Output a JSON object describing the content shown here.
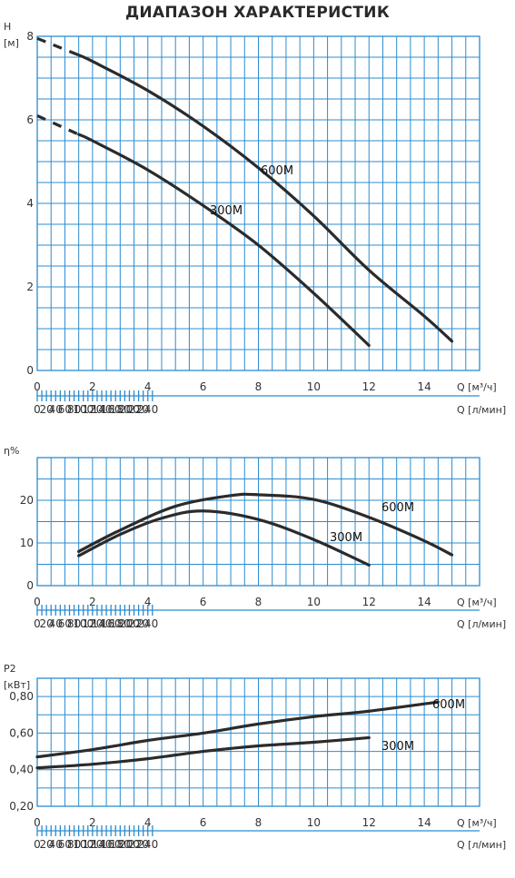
{
  "title": "ДИАПАЗОН ХАРАКТЕРИСТИК",
  "colors": {
    "grid": "#2b8ccf",
    "curve": "#2b2b2b"
  },
  "chart_data": [
    {
      "id": "head",
      "type": "line",
      "ylabel": "H",
      "yunit": "[м]",
      "xlabel": "Q [м³/ч]",
      "x2label": "Q [л/мин]",
      "xlim": [
        0,
        16
      ],
      "ylim": [
        0,
        8
      ],
      "xticks": [
        0,
        2,
        4,
        6,
        8,
        10,
        12,
        14
      ],
      "yticks": [
        0,
        2,
        4,
        6,
        8
      ],
      "x2ticks": [
        0,
        20,
        40,
        60,
        80,
        100,
        120,
        140,
        160,
        180,
        200,
        220,
        240
      ],
      "grid": true,
      "series": [
        {
          "name": "600M",
          "dashed": [
            [
              0,
              7.95
            ],
            [
              1.5,
              7.55
            ]
          ],
          "points": [
            [
              1.5,
              7.55
            ],
            [
              2,
              7.4
            ],
            [
              4,
              6.7
            ],
            [
              6,
              5.85
            ],
            [
              8,
              4.85
            ],
            [
              10,
              3.7
            ],
            [
              12,
              2.4
            ],
            [
              14,
              1.3
            ],
            [
              15,
              0.7
            ]
          ]
        },
        {
          "name": "300M",
          "dashed": [
            [
              0,
              6.1
            ],
            [
              1.5,
              5.65
            ]
          ],
          "points": [
            [
              1.5,
              5.65
            ],
            [
              2,
              5.5
            ],
            [
              4,
              4.8
            ],
            [
              6,
              3.95
            ],
            [
              8,
              3.0
            ],
            [
              10,
              1.85
            ],
            [
              12,
              0.6
            ]
          ]
        }
      ]
    },
    {
      "id": "efficiency",
      "type": "line",
      "ylabel": "η%",
      "xlabel": "Q [м³/ч]",
      "x2label": "Q [л/мин]",
      "xlim": [
        0,
        16
      ],
      "ylim": [
        0,
        30
      ],
      "xticks": [
        0,
        2,
        4,
        6,
        8,
        10,
        12,
        14
      ],
      "yticks": [
        0,
        10,
        20
      ],
      "x2ticks": [
        0,
        20,
        40,
        60,
        80,
        100,
        120,
        140,
        160,
        180,
        200,
        220,
        240
      ],
      "grid": true,
      "series": [
        {
          "name": "600M",
          "points": [
            [
              1.5,
              8
            ],
            [
              3,
              13
            ],
            [
              5,
              18.6
            ],
            [
              7,
              21.1
            ],
            [
              8,
              21.3
            ],
            [
              10,
              20.2
            ],
            [
              12,
              16
            ],
            [
              14,
              10.5
            ],
            [
              15,
              7.2
            ]
          ]
        },
        {
          "name": "300M",
          "points": [
            [
              1.5,
              7
            ],
            [
              3,
              12
            ],
            [
              4.5,
              15.8
            ],
            [
              6,
              17.5
            ],
            [
              8,
              15.5
            ],
            [
              10,
              10.8
            ],
            [
              12,
              4.8
            ]
          ]
        }
      ]
    },
    {
      "id": "power",
      "type": "line",
      "ylabel": "P2",
      "yunit": "[кВт]",
      "xlabel": "Q [м³/ч]",
      "x2label": "Q [л/мин]",
      "xlim": [
        0,
        16
      ],
      "ylim": [
        0.2,
        0.9
      ],
      "xticks": [
        0,
        2,
        4,
        6,
        8,
        10,
        12,
        14
      ],
      "yticks": [
        "0,20",
        "0,40",
        "0,60",
        "0,80"
      ],
      "yticks_values": [
        0.2,
        0.4,
        0.6,
        0.8
      ],
      "x2ticks": [
        0,
        20,
        40,
        60,
        80,
        100,
        120,
        140,
        160,
        180,
        200,
        220,
        240
      ],
      "grid": true,
      "series": [
        {
          "name": "600M",
          "points": [
            [
              0,
              0.47
            ],
            [
              2,
              0.51
            ],
            [
              4,
              0.56
            ],
            [
              6,
              0.6
            ],
            [
              8,
              0.65
            ],
            [
              10,
              0.69
            ],
            [
              12,
              0.72
            ],
            [
              14.5,
              0.77
            ]
          ]
        },
        {
          "name": "300M",
          "points": [
            [
              0,
              0.41
            ],
            [
              2,
              0.43
            ],
            [
              4,
              0.46
            ],
            [
              6,
              0.5
            ],
            [
              8,
              0.53
            ],
            [
              10,
              0.55
            ],
            [
              12,
              0.575
            ]
          ]
        }
      ]
    }
  ]
}
